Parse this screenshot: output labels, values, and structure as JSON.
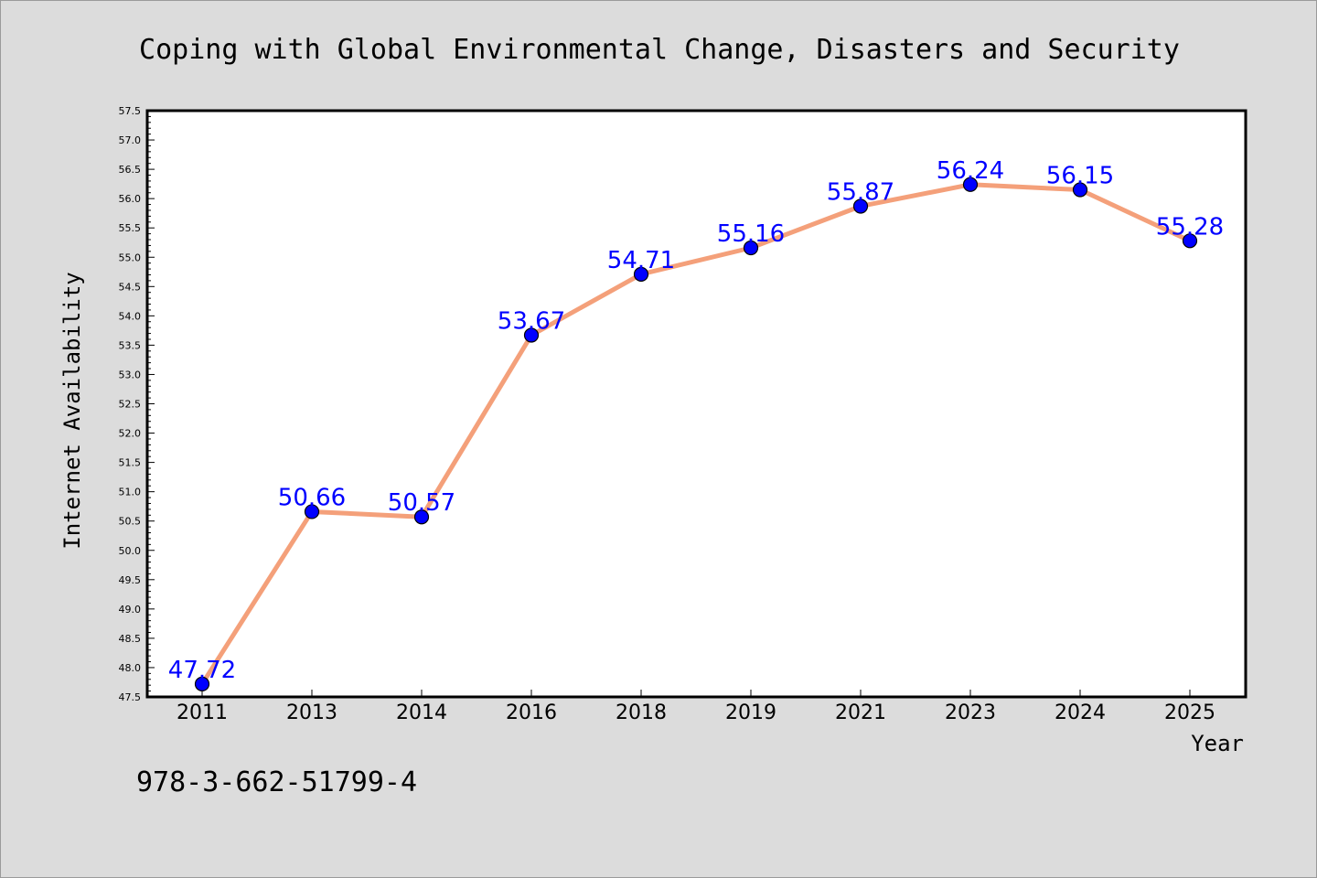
{
  "colors": {
    "background": "#dcdcdc",
    "plot_background": "#ffffff",
    "line": "#f4a07a",
    "marker": "#0000ff",
    "marker_edge": "#000000",
    "data_label": "#0000ff"
  },
  "footnote": "978-3-662-51799-4",
  "chart_data": {
    "type": "line",
    "title": "Coping with Global Environmental Change, Disasters and Security",
    "xlabel": "Year",
    "ylabel": "Internet Availability",
    "categories": [
      "2011",
      "2013",
      "2014",
      "2016",
      "2018",
      "2019",
      "2021",
      "2023",
      "2024",
      "2025"
    ],
    "series": [
      {
        "values": [
          47.72,
          50.66,
          50.57,
          53.67,
          54.71,
          55.16,
          55.87,
          56.24,
          56.15,
          55.28
        ],
        "labels": [
          "47.72",
          "50.66",
          "50.57",
          "53.67",
          "54.71",
          "55.16",
          "55.87",
          "56.24",
          "56.15",
          "55.28"
        ]
      }
    ],
    "ylim": [
      47.5,
      57.5
    ],
    "ytick_step": 0.5,
    "yticks": [
      "47.5",
      "48.0",
      "48.5",
      "49.0",
      "49.5",
      "50.0",
      "50.5",
      "51.0",
      "51.5",
      "52.0",
      "52.5",
      "53.0",
      "53.5",
      "54.0",
      "54.5",
      "55.0",
      "55.5",
      "56.0",
      "56.5",
      "57.0",
      "57.5"
    ],
    "grid": false,
    "legend": "none"
  }
}
